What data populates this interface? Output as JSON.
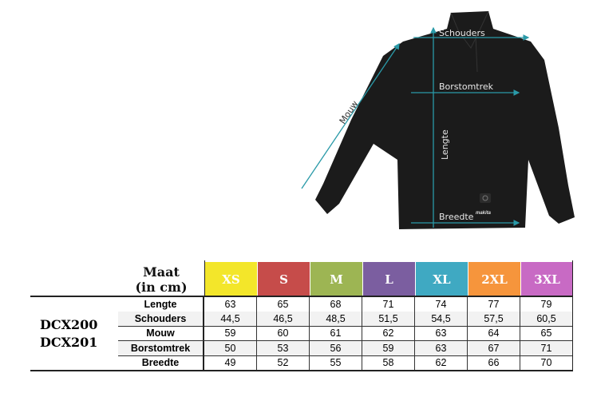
{
  "diagram": {
    "labels": {
      "shoulders": "Schouders",
      "chest": "Borstomtrek",
      "length": "Lengte",
      "width": "Breedte",
      "sleeve": "Mouw"
    },
    "brand_logo": "makita",
    "line_color": "#2a9aa8"
  },
  "table": {
    "header_label_line1": "Maat",
    "header_label_line2": "(in cm)",
    "models": [
      "DCX200",
      "DCX201"
    ],
    "sizes": [
      {
        "label": "XS",
        "color": "#f3e62a"
      },
      {
        "label": "S",
        "color": "#c64c4a"
      },
      {
        "label": "M",
        "color": "#9db553"
      },
      {
        "label": "L",
        "color": "#7b5ea0"
      },
      {
        "label": "XL",
        "color": "#3fa9c2"
      },
      {
        "label": "2XL",
        "color": "#f6953c"
      },
      {
        "label": "3XL",
        "color": "#c86ac4"
      }
    ],
    "rows": [
      {
        "label": "Lengte",
        "values": [
          "63",
          "65",
          "68",
          "71",
          "74",
          "77",
          "79"
        ]
      },
      {
        "label": "Schouders",
        "values": [
          "44,5",
          "46,5",
          "48,5",
          "51,5",
          "54,5",
          "57,5",
          "60,5"
        ]
      },
      {
        "label": "Mouw",
        "values": [
          "59",
          "60",
          "61",
          "62",
          "63",
          "64",
          "65"
        ]
      },
      {
        "label": "Borstomtrek",
        "values": [
          "50",
          "53",
          "56",
          "59",
          "63",
          "67",
          "71"
        ]
      },
      {
        "label": "Breedte",
        "values": [
          "49",
          "52",
          "55",
          "58",
          "62",
          "66",
          "70"
        ]
      }
    ]
  }
}
